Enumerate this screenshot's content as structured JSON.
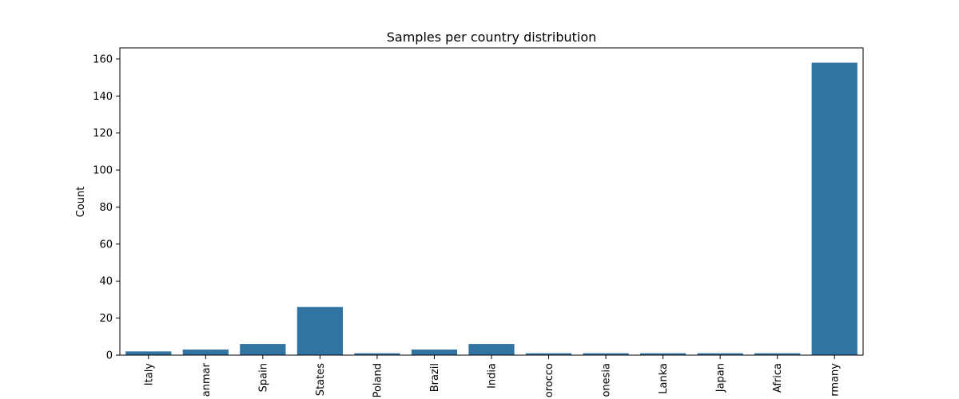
{
  "chart_data": {
    "type": "bar",
    "title": "Samples per country distribution",
    "xlabel": "",
    "ylabel": "Count",
    "categories": [
      "Italy",
      "anmar",
      "Spain",
      "States",
      "Poland",
      "Brazil",
      "India",
      "orocco",
      "onesia",
      "Lanka",
      "Japan",
      "Africa",
      "rmany"
    ],
    "values": [
      2,
      3,
      6,
      26,
      1,
      3,
      6,
      1,
      1,
      1,
      1,
      1,
      158
    ],
    "ylim": [
      0,
      166
    ],
    "yticks": [
      0,
      20,
      40,
      60,
      80,
      100,
      120,
      140,
      160
    ],
    "grid": false,
    "bar_color": "#3274a1"
  }
}
